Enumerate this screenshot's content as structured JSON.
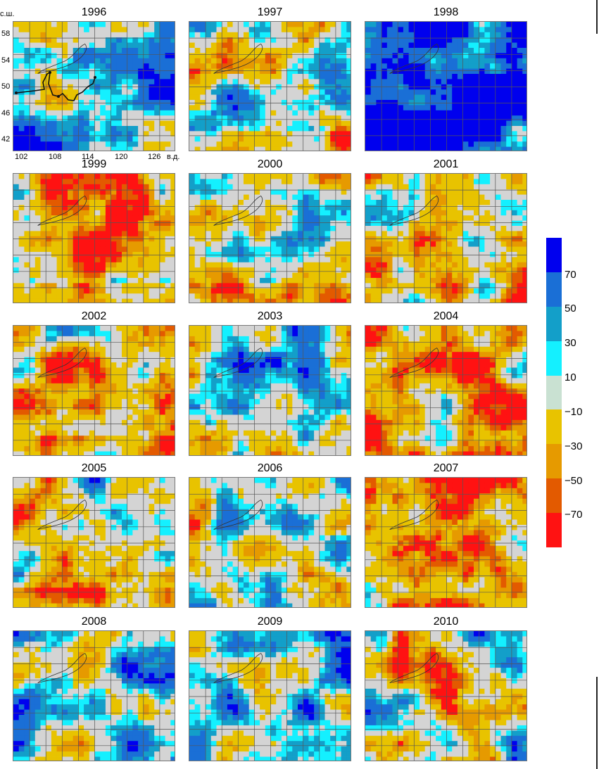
{
  "panels": [
    {
      "year": "1996"
    },
    {
      "year": "1997"
    },
    {
      "year": "1998"
    },
    {
      "year": "1999"
    },
    {
      "year": "2000"
    },
    {
      "year": "2001"
    },
    {
      "year": "2002"
    },
    {
      "year": "2003"
    },
    {
      "year": "2004"
    },
    {
      "year": "2005"
    },
    {
      "year": "2006"
    },
    {
      "year": "2007"
    },
    {
      "year": "2008"
    },
    {
      "year": "2009"
    },
    {
      "year": "2010"
    }
  ],
  "axes": {
    "lat_unit": "с.ш.",
    "lon_unit": "в.д.",
    "lat_ticks": [
      "58",
      "54",
      "50",
      "46",
      "42"
    ],
    "lon_ticks": [
      "102",
      "108",
      "114",
      "120",
      "126"
    ]
  },
  "legend": {
    "ticks": [
      "70",
      "50",
      "30",
      "10",
      "−10",
      "−30",
      "−50",
      "−70"
    ],
    "colors": [
      "#0000ee",
      "#1a6fd6",
      "#139fc9",
      "#14f0ff",
      "#c9e1d2",
      "#e8c300",
      "#e69a00",
      "#e35a00",
      "#ff1212"
    ]
  },
  "map_colors": {
    "neutral": "#d4d4d4",
    "grid": "#555555",
    "outline": "#333333"
  }
}
